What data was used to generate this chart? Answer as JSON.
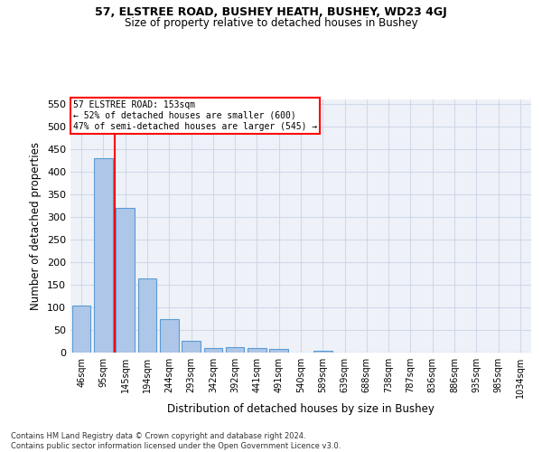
{
  "title1": "57, ELSTREE ROAD, BUSHEY HEATH, BUSHEY, WD23 4GJ",
  "title2": "Size of property relative to detached houses in Bushey",
  "xlabel": "Distribution of detached houses by size in Bushey",
  "ylabel": "Number of detached properties",
  "categories": [
    "46sqm",
    "95sqm",
    "145sqm",
    "194sqm",
    "244sqm",
    "293sqm",
    "342sqm",
    "392sqm",
    "441sqm",
    "491sqm",
    "540sqm",
    "589sqm",
    "639sqm",
    "688sqm",
    "738sqm",
    "787sqm",
    "836sqm",
    "886sqm",
    "935sqm",
    "985sqm",
    "1034sqm"
  ],
  "values": [
    105,
    430,
    320,
    165,
    75,
    27,
    10,
    12,
    10,
    8,
    0,
    5,
    0,
    0,
    0,
    0,
    0,
    0,
    0,
    0,
    0
  ],
  "bar_color": "#aec6e8",
  "bar_edge_color": "#5b9bd5",
  "red_line_index": 2,
  "annotation_line1": "57 ELSTREE ROAD: 153sqm",
  "annotation_line2": "← 52% of detached houses are smaller (600)",
  "annotation_line3": "47% of semi-detached houses are larger (545) →",
  "ylim": [
    0,
    560
  ],
  "yticks": [
    0,
    50,
    100,
    150,
    200,
    250,
    300,
    350,
    400,
    450,
    500,
    550
  ],
  "grid_color": "#d0d8e8",
  "background_color": "#eef2f8",
  "footer1": "Contains HM Land Registry data © Crown copyright and database right 2024.",
  "footer2": "Contains public sector information licensed under the Open Government Licence v3.0."
}
